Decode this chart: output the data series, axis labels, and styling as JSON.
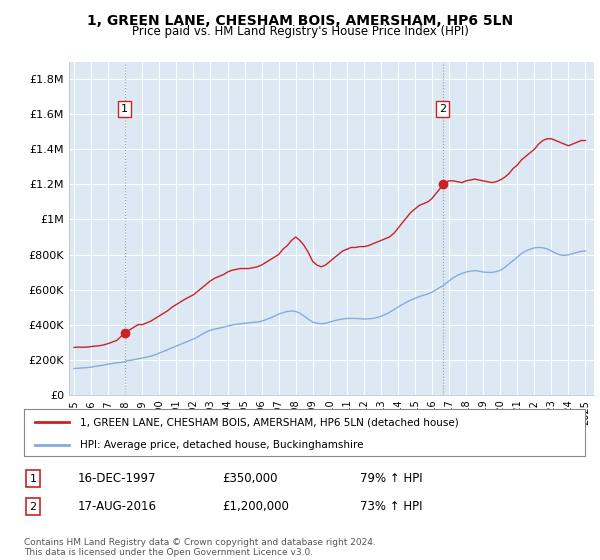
{
  "title1": "1, GREEN LANE, CHESHAM BOIS, AMERSHAM, HP6 5LN",
  "title2": "Price paid vs. HM Land Registry's House Price Index (HPI)",
  "red_line_label": "1, GREEN LANE, CHESHAM BOIS, AMERSHAM, HP6 5LN (detached house)",
  "blue_line_label": "HPI: Average price, detached house, Buckinghamshire",
  "annotation1": {
    "num": "1",
    "date": "16-DEC-1997",
    "price": "£350,000",
    "hpi": "79% ↑ HPI",
    "year": 1997.96,
    "value": 350000
  },
  "annotation2": {
    "num": "2",
    "date": "17-AUG-2016",
    "price": "£1,200,000",
    "hpi": "73% ↑ HPI",
    "year": 2016.63,
    "value": 1200000
  },
  "footer": "Contains HM Land Registry data © Crown copyright and database right 2024.\nThis data is licensed under the Open Government Licence v3.0.",
  "ylim": [
    0,
    1900000
  ],
  "yticks": [
    0,
    200000,
    400000,
    600000,
    800000,
    1000000,
    1200000,
    1400000,
    1600000,
    1800000
  ],
  "ytick_labels": [
    "£0",
    "£200K",
    "£400K",
    "£600K",
    "£800K",
    "£1M",
    "£1.2M",
    "£1.4M",
    "£1.6M",
    "£1.8M"
  ],
  "xlim_start": 1994.7,
  "xlim_end": 2025.5,
  "xticks": [
    1995,
    1996,
    1997,
    1998,
    1999,
    2000,
    2001,
    2002,
    2003,
    2004,
    2005,
    2006,
    2007,
    2008,
    2009,
    2010,
    2011,
    2012,
    2013,
    2014,
    2015,
    2016,
    2017,
    2018,
    2019,
    2020,
    2021,
    2022,
    2023,
    2024,
    2025
  ],
  "red_color": "#cc2222",
  "blue_color": "#88aadd",
  "vline_color": "#999999",
  "plot_bg_color": "#dce9f5",
  "grid_color": "#ffffff",
  "red_line_data": [
    [
      1995.0,
      270000
    ],
    [
      1995.25,
      272000
    ],
    [
      1995.5,
      271000
    ],
    [
      1995.75,
      272000
    ],
    [
      1996.0,
      275000
    ],
    [
      1996.25,
      278000
    ],
    [
      1996.5,
      280000
    ],
    [
      1996.75,
      285000
    ],
    [
      1997.0,
      292000
    ],
    [
      1997.5,
      310000
    ],
    [
      1997.96,
      350000
    ],
    [
      1998.0,
      345000
    ],
    [
      1998.25,
      370000
    ],
    [
      1998.5,
      385000
    ],
    [
      1998.75,
      400000
    ],
    [
      1999.0,
      400000
    ],
    [
      1999.25,
      410000
    ],
    [
      1999.5,
      420000
    ],
    [
      1999.75,
      435000
    ],
    [
      2000.0,
      450000
    ],
    [
      2000.25,
      465000
    ],
    [
      2000.5,
      480000
    ],
    [
      2000.75,
      500000
    ],
    [
      2001.0,
      515000
    ],
    [
      2001.25,
      530000
    ],
    [
      2001.5,
      545000
    ],
    [
      2001.75,
      558000
    ],
    [
      2002.0,
      570000
    ],
    [
      2002.25,
      590000
    ],
    [
      2002.5,
      610000
    ],
    [
      2002.75,
      630000
    ],
    [
      2003.0,
      650000
    ],
    [
      2003.25,
      665000
    ],
    [
      2003.5,
      675000
    ],
    [
      2003.75,
      685000
    ],
    [
      2004.0,
      700000
    ],
    [
      2004.25,
      710000
    ],
    [
      2004.5,
      715000
    ],
    [
      2004.75,
      720000
    ],
    [
      2005.0,
      720000
    ],
    [
      2005.25,
      720000
    ],
    [
      2005.5,
      725000
    ],
    [
      2005.75,
      730000
    ],
    [
      2006.0,
      740000
    ],
    [
      2006.25,
      755000
    ],
    [
      2006.5,
      770000
    ],
    [
      2006.75,
      785000
    ],
    [
      2007.0,
      800000
    ],
    [
      2007.25,
      830000
    ],
    [
      2007.5,
      850000
    ],
    [
      2007.75,
      880000
    ],
    [
      2008.0,
      900000
    ],
    [
      2008.25,
      880000
    ],
    [
      2008.5,
      850000
    ],
    [
      2008.75,
      810000
    ],
    [
      2009.0,
      760000
    ],
    [
      2009.25,
      740000
    ],
    [
      2009.5,
      730000
    ],
    [
      2009.75,
      740000
    ],
    [
      2010.0,
      760000
    ],
    [
      2010.25,
      780000
    ],
    [
      2010.5,
      800000
    ],
    [
      2010.75,
      820000
    ],
    [
      2011.0,
      830000
    ],
    [
      2011.25,
      840000
    ],
    [
      2011.5,
      840000
    ],
    [
      2011.75,
      845000
    ],
    [
      2012.0,
      845000
    ],
    [
      2012.25,
      850000
    ],
    [
      2012.5,
      860000
    ],
    [
      2012.75,
      870000
    ],
    [
      2013.0,
      880000
    ],
    [
      2013.25,
      890000
    ],
    [
      2013.5,
      900000
    ],
    [
      2013.75,
      920000
    ],
    [
      2014.0,
      950000
    ],
    [
      2014.25,
      980000
    ],
    [
      2014.5,
      1010000
    ],
    [
      2014.75,
      1040000
    ],
    [
      2015.0,
      1060000
    ],
    [
      2015.25,
      1080000
    ],
    [
      2015.5,
      1090000
    ],
    [
      2015.75,
      1100000
    ],
    [
      2016.0,
      1120000
    ],
    [
      2016.25,
      1150000
    ],
    [
      2016.5,
      1180000
    ],
    [
      2016.63,
      1200000
    ],
    [
      2016.75,
      1210000
    ],
    [
      2017.0,
      1220000
    ],
    [
      2017.25,
      1220000
    ],
    [
      2017.5,
      1215000
    ],
    [
      2017.75,
      1210000
    ],
    [
      2018.0,
      1220000
    ],
    [
      2018.25,
      1225000
    ],
    [
      2018.5,
      1230000
    ],
    [
      2018.75,
      1225000
    ],
    [
      2019.0,
      1220000
    ],
    [
      2019.25,
      1215000
    ],
    [
      2019.5,
      1210000
    ],
    [
      2019.75,
      1215000
    ],
    [
      2020.0,
      1225000
    ],
    [
      2020.25,
      1240000
    ],
    [
      2020.5,
      1260000
    ],
    [
      2020.75,
      1290000
    ],
    [
      2021.0,
      1310000
    ],
    [
      2021.25,
      1340000
    ],
    [
      2021.5,
      1360000
    ],
    [
      2021.75,
      1380000
    ],
    [
      2022.0,
      1400000
    ],
    [
      2022.25,
      1430000
    ],
    [
      2022.5,
      1450000
    ],
    [
      2022.75,
      1460000
    ],
    [
      2023.0,
      1460000
    ],
    [
      2023.25,
      1450000
    ],
    [
      2023.5,
      1440000
    ],
    [
      2023.75,
      1430000
    ],
    [
      2024.0,
      1420000
    ],
    [
      2024.25,
      1430000
    ],
    [
      2024.5,
      1440000
    ],
    [
      2024.75,
      1450000
    ],
    [
      2025.0,
      1450000
    ]
  ],
  "blue_line_data": [
    [
      1995.0,
      150000
    ],
    [
      1995.25,
      152000
    ],
    [
      1995.5,
      153000
    ],
    [
      1995.75,
      155000
    ],
    [
      1996.0,
      158000
    ],
    [
      1996.25,
      162000
    ],
    [
      1996.5,
      166000
    ],
    [
      1996.75,
      170000
    ],
    [
      1997.0,
      175000
    ],
    [
      1997.5,
      182000
    ],
    [
      1997.96,
      188000
    ],
    [
      1998.0,
      192000
    ],
    [
      1998.5,
      200000
    ],
    [
      1998.75,
      205000
    ],
    [
      1999.0,
      210000
    ],
    [
      1999.25,
      215000
    ],
    [
      1999.5,
      220000
    ],
    [
      1999.75,
      228000
    ],
    [
      2000.0,
      238000
    ],
    [
      2000.25,
      248000
    ],
    [
      2000.5,
      258000
    ],
    [
      2000.75,
      268000
    ],
    [
      2001.0,
      278000
    ],
    [
      2001.25,
      288000
    ],
    [
      2001.5,
      298000
    ],
    [
      2001.75,
      308000
    ],
    [
      2002.0,
      318000
    ],
    [
      2002.25,
      330000
    ],
    [
      2002.5,
      345000
    ],
    [
      2002.75,
      358000
    ],
    [
      2003.0,
      368000
    ],
    [
      2003.25,
      375000
    ],
    [
      2003.5,
      380000
    ],
    [
      2003.75,
      385000
    ],
    [
      2004.0,
      392000
    ],
    [
      2004.25,
      398000
    ],
    [
      2004.5,
      402000
    ],
    [
      2004.75,
      405000
    ],
    [
      2005.0,
      408000
    ],
    [
      2005.25,
      410000
    ],
    [
      2005.5,
      413000
    ],
    [
      2005.75,
      415000
    ],
    [
      2006.0,
      420000
    ],
    [
      2006.25,
      428000
    ],
    [
      2006.5,
      438000
    ],
    [
      2006.75,
      448000
    ],
    [
      2007.0,
      460000
    ],
    [
      2007.25,
      468000
    ],
    [
      2007.5,
      475000
    ],
    [
      2007.75,
      478000
    ],
    [
      2008.0,
      475000
    ],
    [
      2008.25,
      465000
    ],
    [
      2008.5,
      448000
    ],
    [
      2008.75,
      430000
    ],
    [
      2009.0,
      415000
    ],
    [
      2009.25,
      408000
    ],
    [
      2009.5,
      405000
    ],
    [
      2009.75,
      408000
    ],
    [
      2010.0,
      415000
    ],
    [
      2010.25,
      422000
    ],
    [
      2010.5,
      428000
    ],
    [
      2010.75,
      432000
    ],
    [
      2011.0,
      435000
    ],
    [
      2011.25,
      436000
    ],
    [
      2011.5,
      435000
    ],
    [
      2011.75,
      434000
    ],
    [
      2012.0,
      432000
    ],
    [
      2012.25,
      433000
    ],
    [
      2012.5,
      435000
    ],
    [
      2012.75,
      440000
    ],
    [
      2013.0,
      448000
    ],
    [
      2013.25,
      458000
    ],
    [
      2013.5,
      470000
    ],
    [
      2013.75,
      485000
    ],
    [
      2014.0,
      500000
    ],
    [
      2014.25,
      515000
    ],
    [
      2014.5,
      528000
    ],
    [
      2014.75,
      540000
    ],
    [
      2015.0,
      550000
    ],
    [
      2015.25,
      560000
    ],
    [
      2015.5,
      568000
    ],
    [
      2015.75,
      575000
    ],
    [
      2016.0,
      585000
    ],
    [
      2016.25,
      600000
    ],
    [
      2016.5,
      615000
    ],
    [
      2016.63,
      620000
    ],
    [
      2016.75,
      630000
    ],
    [
      2017.0,
      650000
    ],
    [
      2017.25,
      668000
    ],
    [
      2017.5,
      682000
    ],
    [
      2017.75,
      692000
    ],
    [
      2018.0,
      700000
    ],
    [
      2018.25,
      705000
    ],
    [
      2018.5,
      708000
    ],
    [
      2018.75,
      705000
    ],
    [
      2019.0,
      700000
    ],
    [
      2019.25,
      698000
    ],
    [
      2019.5,
      698000
    ],
    [
      2019.75,
      702000
    ],
    [
      2020.0,
      710000
    ],
    [
      2020.25,
      725000
    ],
    [
      2020.5,
      745000
    ],
    [
      2020.75,
      765000
    ],
    [
      2021.0,
      785000
    ],
    [
      2021.25,
      805000
    ],
    [
      2021.5,
      820000
    ],
    [
      2021.75,
      830000
    ],
    [
      2022.0,
      838000
    ],
    [
      2022.25,
      840000
    ],
    [
      2022.5,
      838000
    ],
    [
      2022.75,
      832000
    ],
    [
      2023.0,
      820000
    ],
    [
      2023.25,
      808000
    ],
    [
      2023.5,
      798000
    ],
    [
      2023.75,
      795000
    ],
    [
      2024.0,
      798000
    ],
    [
      2024.25,
      805000
    ],
    [
      2024.5,
      812000
    ],
    [
      2024.75,
      818000
    ],
    [
      2025.0,
      820000
    ]
  ]
}
